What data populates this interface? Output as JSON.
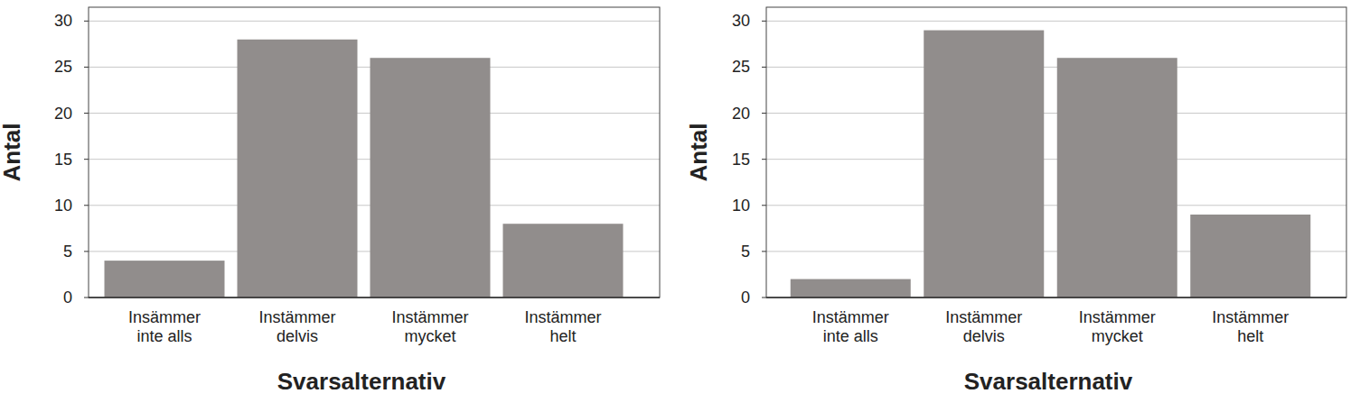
{
  "chart_data": [
    {
      "type": "bar",
      "categories": [
        "Insämmer inte alls",
        "Instämmer delvis",
        "Instämmer mycket",
        "Instämmer helt"
      ],
      "values": [
        4,
        28,
        26,
        8
      ],
      "color": "#918d8c",
      "x_label": "Svarsalternativ",
      "y_label": "Antal",
      "ylim": [
        0,
        31.5
      ],
      "yticks": [
        0,
        5,
        10,
        15,
        20,
        25,
        30
      ],
      "grid": true
    },
    {
      "type": "bar",
      "categories": [
        "Instämmer inte alls",
        "Instämmer delvis",
        "Instämmer mycket",
        "Instämmer helt"
      ],
      "values": [
        2,
        29,
        26,
        9
      ],
      "color": "#918d8c",
      "x_label": "Svarsalternativ",
      "y_label": "Antal",
      "ylim": [
        0,
        31.5
      ],
      "yticks": [
        0,
        5,
        10,
        15,
        20,
        25,
        30
      ],
      "grid": true
    }
  ]
}
